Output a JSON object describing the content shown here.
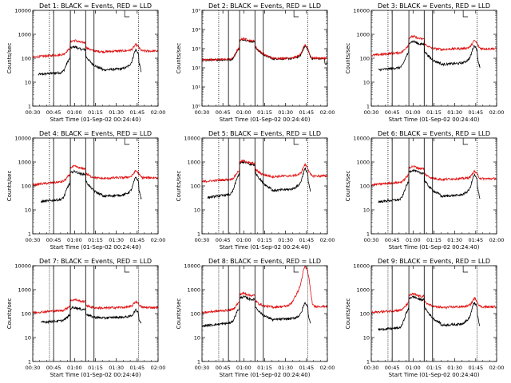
{
  "figure": {
    "xlabel": "Start Time (01-Sep-02 00:24:40)",
    "ylabel": "Counts/sec",
    "colors": {
      "black_series": "#000000",
      "red_series": "#e01010",
      "axes": "#000000"
    }
  },
  "chart_data": [
    {
      "type": "line",
      "title": "Det 1: BLACK = Events, RED = LLD",
      "xticks": [
        "00:30",
        "00:45",
        "01:00",
        "01:15",
        "01:30",
        "01:45",
        "02:00"
      ],
      "yticks": [
        "1",
        "10",
        "100",
        "1000",
        "10000"
      ],
      "ylim": [
        1,
        10000
      ],
      "log_y": true,
      "solid_lines": [
        "00:45",
        "00:57",
        "01:08",
        "01:14"
      ],
      "dotted_lines": [
        "00:42",
        "01:46"
      ],
      "series": [
        {
          "name": "BLACK",
          "color": "#000000",
          "start": "00:34",
          "end": "01:48",
          "base": 20,
          "quiet": 35,
          "peak1": 300,
          "peak2": 200
        },
        {
          "name": "RED",
          "color": "#e01010",
          "start": "00:30",
          "end": "02:00",
          "base": 110,
          "quiet": 200,
          "peak1": 550,
          "peak2": 350
        }
      ]
    },
    {
      "type": "line",
      "title": "Det 2: BLACK = Events, RED = LLD",
      "xticks": [
        "00:30",
        "00:45",
        "01:00",
        "01:15",
        "01:30",
        "01:45",
        "02:00"
      ],
      "yticks": [
        "10⁰",
        "10¹",
        "10²",
        "10³",
        "10⁴",
        "10⁵"
      ],
      "ylim": [
        1,
        100000
      ],
      "log_y": true,
      "solid_lines": [
        "00:49",
        "00:57",
        "01:08",
        "01:14"
      ],
      "dotted_lines": [
        "00:42",
        "01:46"
      ],
      "series": [
        {
          "name": "BLACK",
          "color": "#000000",
          "start": "00:30",
          "end": "02:00",
          "base": 250,
          "quiet": 300,
          "peak1": 3000,
          "peak2": 1200
        },
        {
          "name": "RED",
          "color": "#e01010",
          "start": "00:30",
          "end": "02:00",
          "base": 260,
          "quiet": 320,
          "peak1": 3300,
          "peak2": 1400
        }
      ]
    },
    {
      "type": "line",
      "title": "Det 3: BLACK = Events, RED = LLD",
      "xticks": [
        "00:30",
        "00:45",
        "01:00",
        "01:15",
        "01:30",
        "01:45",
        "02:00"
      ],
      "yticks": [
        "1",
        "10",
        "100",
        "1000",
        "10000"
      ],
      "ylim": [
        1,
        10000
      ],
      "log_y": true,
      "solid_lines": [
        "00:45",
        "00:57",
        "01:08",
        "01:14"
      ],
      "dotted_lines": [
        "00:42",
        "01:46"
      ],
      "series": [
        {
          "name": "BLACK",
          "color": "#000000",
          "start": "00:35",
          "end": "01:48",
          "base": 30,
          "quiet": 60,
          "peak1": 500,
          "peak2": 300
        },
        {
          "name": "RED",
          "color": "#e01010",
          "start": "00:30",
          "end": "02:00",
          "base": 130,
          "quiet": 250,
          "peak1": 800,
          "peak2": 500
        }
      ]
    },
    {
      "type": "line",
      "title": "Det 4: BLACK = Events, RED = LLD",
      "xticks": [
        "00:30",
        "00:45",
        "01:00",
        "01:15",
        "01:30",
        "01:45",
        "02:00"
      ],
      "yticks": [
        "1",
        "10",
        "100",
        "1000",
        "10000"
      ],
      "ylim": [
        1,
        10000
      ],
      "log_y": true,
      "solid_lines": [
        "00:45",
        "00:57",
        "01:08",
        "01:14"
      ],
      "dotted_lines": [
        "00:42",
        "01:46"
      ],
      "series": [
        {
          "name": "BLACK",
          "color": "#000000",
          "start": "00:36",
          "end": "01:48",
          "base": 20,
          "quiet": 40,
          "peak1": 400,
          "peak2": 200
        },
        {
          "name": "RED",
          "color": "#e01010",
          "start": "00:30",
          "end": "02:00",
          "base": 110,
          "quiet": 220,
          "peak1": 650,
          "peak2": 400
        }
      ]
    },
    {
      "type": "line",
      "title": "Det 5: BLACK = Events, RED = LLD",
      "xticks": [
        "00:30",
        "00:45",
        "01:00",
        "01:15",
        "01:30",
        "01:45",
        "02:00"
      ],
      "yticks": [
        "1",
        "10",
        "100",
        "1000",
        "10000"
      ],
      "ylim": [
        1,
        10000
      ],
      "log_y": true,
      "solid_lines": [
        "00:49",
        "00:57",
        "01:08",
        "01:14"
      ],
      "dotted_lines": [
        "00:42",
        "01:46"
      ],
      "series": [
        {
          "name": "BLACK",
          "color": "#000000",
          "start": "00:34",
          "end": "01:48",
          "base": 30,
          "quiet": 70,
          "peak1": 1000,
          "peak2": 450
        },
        {
          "name": "RED",
          "color": "#e01010",
          "start": "00:30",
          "end": "02:00",
          "base": 150,
          "quiet": 260,
          "peak1": 1100,
          "peak2": 700
        }
      ]
    },
    {
      "type": "line",
      "title": "Det 6: BLACK = Events, RED = LLD",
      "xticks": [
        "00:30",
        "00:45",
        "01:00",
        "01:15",
        "01:30",
        "01:45",
        "02:00"
      ],
      "yticks": [
        "1",
        "10",
        "100",
        "1000",
        "10000"
      ],
      "ylim": [
        1,
        10000
      ],
      "log_y": true,
      "solid_lines": [
        "00:45",
        "00:57",
        "01:08",
        "01:14"
      ],
      "dotted_lines": [
        "00:42",
        "01:46"
      ],
      "series": [
        {
          "name": "BLACK",
          "color": "#000000",
          "start": "00:35",
          "end": "01:48",
          "base": 20,
          "quiet": 40,
          "peak1": 450,
          "peak2": 250
        },
        {
          "name": "RED",
          "color": "#e01010",
          "start": "00:30",
          "end": "02:00",
          "base": 110,
          "quiet": 200,
          "peak1": 650,
          "peak2": 380
        }
      ]
    },
    {
      "type": "line",
      "title": "Det 7: BLACK = Events, RED = LLD",
      "xticks": [
        "00:30",
        "00:45",
        "01:00",
        "01:15",
        "01:30",
        "01:45",
        "02:00"
      ],
      "yticks": [
        "1",
        "10",
        "100",
        "1000",
        "10000"
      ],
      "ylim": [
        1,
        10000
      ],
      "log_y": true,
      "solid_lines": [
        "00:45",
        "00:57",
        "01:08",
        "01:14"
      ],
      "dotted_lines": [
        "00:42",
        "01:46"
      ],
      "series": [
        {
          "name": "BLACK",
          "color": "#000000",
          "start": "00:36",
          "end": "01:48",
          "base": 40,
          "quiet": 70,
          "peak1": 180,
          "peak2": 130
        },
        {
          "name": "RED",
          "color": "#e01010",
          "start": "00:30",
          "end": "02:00",
          "base": 110,
          "quiet": 180,
          "peak1": 380,
          "peak2": 300
        }
      ]
    },
    {
      "type": "line",
      "title": "Det 8: BLACK = Events, RED = LLD",
      "xticks": [
        "00:30",
        "00:45",
        "01:00",
        "01:15",
        "01:30",
        "01:45",
        "02:00"
      ],
      "yticks": [
        "1",
        "10",
        "100",
        "1000",
        "10000"
      ],
      "ylim": [
        1,
        10000
      ],
      "log_y": true,
      "solid_lines": [
        "00:49",
        "00:57",
        "01:08",
        "01:14"
      ],
      "dotted_lines": [
        "00:42",
        "01:46"
      ],
      "series": [
        {
          "name": "BLACK",
          "color": "#000000",
          "start": "00:30",
          "end": "01:48",
          "base": 30,
          "quiet": 60,
          "peak1": 500,
          "peak2": 250
        },
        {
          "name": "RED",
          "color": "#e01010",
          "start": "00:30",
          "end": "02:00",
          "base": 110,
          "quiet": 200,
          "peak1": 700,
          "peak2": 8000
        }
      ]
    },
    {
      "type": "line",
      "title": "Det 9: BLACK = Events, RED = LLD",
      "xticks": [
        "00:30",
        "00:45",
        "01:00",
        "01:15",
        "01:30",
        "01:45",
        "02:00"
      ],
      "yticks": [
        "1",
        "10",
        "100",
        "1000",
        "10000"
      ],
      "ylim": [
        1,
        10000
      ],
      "log_y": true,
      "solid_lines": [
        "00:45",
        "00:57",
        "01:08",
        "01:14"
      ],
      "dotted_lines": [
        "00:42",
        "01:46"
      ],
      "series": [
        {
          "name": "BLACK",
          "color": "#000000",
          "start": "00:35",
          "end": "01:48",
          "base": 20,
          "quiet": 35,
          "peak1": 500,
          "peak2": 250
        },
        {
          "name": "RED",
          "color": "#e01010",
          "start": "00:30",
          "end": "02:00",
          "base": 110,
          "quiet": 190,
          "peak1": 650,
          "peak2": 400
        }
      ]
    }
  ]
}
